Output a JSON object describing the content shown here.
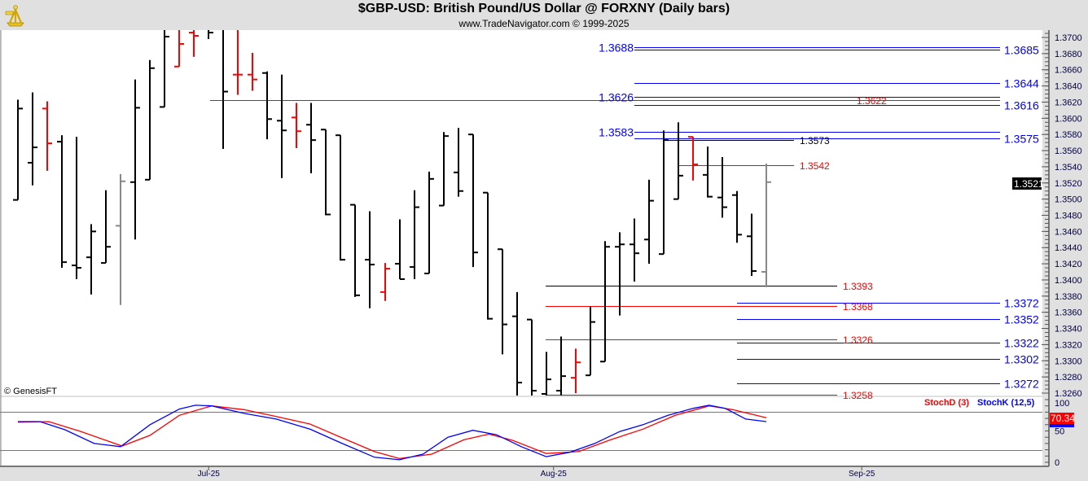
{
  "header": {
    "title": "$GBP-USD:  British Pound/US Dollar @ FORXNY  (Daily bars)",
    "subtitle": "www.TradeNavigator.com © 1999-2025",
    "logo": "sextant-logo"
  },
  "copyright": "© GenesisFT",
  "colors": {
    "up": "#000000",
    "down": "#ff0000",
    "last": "#888888",
    "blue": "#0000ff",
    "red": "#ff0000",
    "black": "#000000"
  },
  "chart_data": [
    {
      "type": "ohlc",
      "title": "$GBP-USD Daily bars",
      "ylim": [
        1.3255,
        1.371
      ],
      "y_ticks": [
        "1.3700",
        "1.3680",
        "1.3660",
        "1.3640",
        "1.3620",
        "1.3600",
        "1.3580",
        "1.3560",
        "1.3540",
        "1.3520",
        "1.3500",
        "1.3480",
        "1.3460",
        "1.3440",
        "1.3420",
        "1.3400",
        "1.3380",
        "1.3360",
        "1.3340",
        "1.3320",
        "1.3300",
        "1.3280",
        "1.3260"
      ],
      "x_ticks": [
        {
          "label": "Jul-25",
          "bar": 13
        },
        {
          "label": "Aug-25",
          "bar": 36.5
        },
        {
          "label": "Sep-25",
          "bar": 57.5
        }
      ],
      "last_price": "1.3521",
      "bars": [
        {
          "o": 1.3499,
          "h": 1.3623,
          "l": 1.3499,
          "c": 1.3612,
          "color": "up"
        },
        {
          "o": 1.3545,
          "h": 1.3632,
          "l": 1.3517,
          "c": 1.3564,
          "color": "up"
        },
        {
          "o": 1.3612,
          "h": 1.3621,
          "l": 1.3535,
          "c": 1.3569,
          "color": "down"
        },
        {
          "o": 1.3571,
          "h": 1.3579,
          "l": 1.3415,
          "c": 1.3422,
          "color": "up"
        },
        {
          "o": 1.3418,
          "h": 1.3577,
          "l": 1.3401,
          "c": 1.3415,
          "color": "up"
        },
        {
          "o": 1.3428,
          "h": 1.3469,
          "l": 1.3382,
          "c": 1.346,
          "color": "up"
        },
        {
          "o": 1.3421,
          "h": 1.3511,
          "l": 1.3421,
          "c": 1.3441,
          "color": "up"
        },
        {
          "o": 1.3467,
          "h": 1.3531,
          "l": 1.3369,
          "c": 1.3522,
          "color": "last"
        },
        {
          "o": 1.3521,
          "h": 1.3648,
          "l": 1.345,
          "c": 1.3613,
          "color": "up"
        },
        {
          "o": 1.3524,
          "h": 1.3672,
          "l": 1.3524,
          "c": 1.3662,
          "color": "up"
        },
        {
          "o": 1.3614,
          "h": 1.3736,
          "l": 1.3614,
          "c": 1.3701,
          "color": "up"
        },
        {
          "o": 1.3664,
          "h": 1.3731,
          "l": 1.3664,
          "c": 1.3692,
          "color": "down"
        },
        {
          "o": 1.3706,
          "h": 1.3728,
          "l": 1.3676,
          "c": 1.3702,
          "color": "down"
        },
        {
          "o": 1.3716,
          "h": 1.3731,
          "l": 1.3698,
          "c": 1.3706,
          "color": "up"
        },
        {
          "o": 1.3726,
          "h": 1.3734,
          "l": 1.3562,
          "c": 1.3633,
          "color": "up"
        },
        {
          "o": 1.3654,
          "h": 1.3726,
          "l": 1.3629,
          "c": 1.3654,
          "color": "down"
        },
        {
          "o": 1.3654,
          "h": 1.3681,
          "l": 1.3634,
          "c": 1.3648,
          "color": "down"
        },
        {
          "o": 1.3656,
          "h": 1.3658,
          "l": 1.3574,
          "c": 1.3599,
          "color": "up"
        },
        {
          "o": 1.3597,
          "h": 1.3654,
          "l": 1.3526,
          "c": 1.3585,
          "color": "up"
        },
        {
          "o": 1.3601,
          "h": 1.3619,
          "l": 1.3563,
          "c": 1.3584,
          "color": "down"
        },
        {
          "o": 1.3592,
          "h": 1.3619,
          "l": 1.3532,
          "c": 1.3573,
          "color": "up"
        },
        {
          "o": 1.3586,
          "h": 1.3586,
          "l": 1.348,
          "c": 1.3481,
          "color": "up"
        },
        {
          "o": 1.3579,
          "h": 1.3579,
          "l": 1.3424,
          "c": 1.3425,
          "color": "up"
        },
        {
          "o": 1.3493,
          "h": 1.3493,
          "l": 1.3379,
          "c": 1.3381,
          "color": "up"
        },
        {
          "o": 1.3425,
          "h": 1.3485,
          "l": 1.3365,
          "c": 1.3419,
          "color": "up"
        },
        {
          "o": 1.3385,
          "h": 1.3421,
          "l": 1.3374,
          "c": 1.3414,
          "color": "down"
        },
        {
          "o": 1.342,
          "h": 1.3475,
          "l": 1.3401,
          "c": 1.3401,
          "color": "up"
        },
        {
          "o": 1.3416,
          "h": 1.3511,
          "l": 1.3401,
          "c": 1.349,
          "color": "up"
        },
        {
          "o": 1.3408,
          "h": 1.3534,
          "l": 1.3408,
          "c": 1.3525,
          "color": "up"
        },
        {
          "o": 1.3492,
          "h": 1.3583,
          "l": 1.3492,
          "c": 1.3578,
          "color": "up"
        },
        {
          "o": 1.3533,
          "h": 1.3588,
          "l": 1.3503,
          "c": 1.351,
          "color": "up"
        },
        {
          "o": 1.358,
          "h": 1.358,
          "l": 1.3416,
          "c": 1.3434,
          "color": "up"
        },
        {
          "o": 1.3508,
          "h": 1.3508,
          "l": 1.3351,
          "c": 1.3352,
          "color": "up"
        },
        {
          "o": 1.3438,
          "h": 1.3438,
          "l": 1.3308,
          "c": 1.3345,
          "color": "up"
        },
        {
          "o": 1.3355,
          "h": 1.3385,
          "l": 1.3243,
          "c": 1.3273,
          "color": "up"
        },
        {
          "o": 1.3351,
          "h": 1.3351,
          "l": 1.3243,
          "c": 1.3263,
          "color": "up"
        },
        {
          "o": 1.3259,
          "h": 1.3311,
          "l": 1.3253,
          "c": 1.3277,
          "color": "up"
        },
        {
          "o": 1.3263,
          "h": 1.333,
          "l": 1.3253,
          "c": 1.3281,
          "color": "up"
        },
        {
          "o": 1.3279,
          "h": 1.3315,
          "l": 1.326,
          "c": 1.3298,
          "color": "down"
        },
        {
          "o": 1.3282,
          "h": 1.3367,
          "l": 1.3282,
          "c": 1.3348,
          "color": "up"
        },
        {
          "o": 1.3299,
          "h": 1.3448,
          "l": 1.3299,
          "c": 1.3441,
          "color": "up"
        },
        {
          "o": 1.3441,
          "h": 1.3459,
          "l": 1.3356,
          "c": 1.3444,
          "color": "up"
        },
        {
          "o": 1.3444,
          "h": 1.3476,
          "l": 1.3398,
          "c": 1.3433,
          "color": "up"
        },
        {
          "o": 1.345,
          "h": 1.3524,
          "l": 1.342,
          "c": 1.3498,
          "color": "up"
        },
        {
          "o": 1.3432,
          "h": 1.3585,
          "l": 1.3432,
          "c": 1.3573,
          "color": "up"
        },
        {
          "o": 1.35,
          "h": 1.3595,
          "l": 1.35,
          "c": 1.3529,
          "color": "up"
        },
        {
          "o": 1.3577,
          "h": 1.3577,
          "l": 1.3523,
          "c": 1.3543,
          "color": "down"
        },
        {
          "o": 1.353,
          "h": 1.3565,
          "l": 1.3502,
          "c": 1.3503,
          "color": "up"
        },
        {
          "o": 1.3502,
          "h": 1.3552,
          "l": 1.3477,
          "c": 1.349,
          "color": "up"
        },
        {
          "o": 1.3505,
          "h": 1.351,
          "l": 1.3446,
          "c": 1.3456,
          "color": "up"
        },
        {
          "o": 1.3454,
          "h": 1.3482,
          "l": 1.3405,
          "c": 1.3411,
          "color": "up"
        },
        {
          "o": 1.341,
          "h": 1.3544,
          "l": 1.3391,
          "c": 1.3521,
          "color": "last"
        }
      ],
      "levels": [
        {
          "value": 1.3688,
          "label": "1.3688",
          "color": "blue",
          "line": "blue"
        },
        {
          "value": 1.3685,
          "label": "1.3685",
          "color": "blue",
          "line": "blue"
        },
        {
          "value": 1.3644,
          "label": "1.3644",
          "color": "blue",
          "line": "blue"
        },
        {
          "value": 1.3626,
          "label": "1.3626",
          "color": "blue",
          "line": "blue"
        },
        {
          "value": 1.3622,
          "label": "1.3622",
          "color": "red",
          "line": "red"
        },
        {
          "value": 1.3616,
          "label": "1.3616",
          "color": "blue",
          "line": "blue"
        },
        {
          "value": 1.3583,
          "label": "1.3583",
          "color": "blue",
          "line": "blue"
        },
        {
          "value": 1.3575,
          "label": "1.3575",
          "color": "blue",
          "line": "blue"
        },
        {
          "value": 1.3573,
          "label": "1.3573",
          "color": "black",
          "line": "black"
        },
        {
          "value": 1.3542,
          "label": "1.3542",
          "color": "red",
          "line": "red"
        },
        {
          "value": 1.3393,
          "label": "1.3393",
          "color": "red",
          "line": "black"
        },
        {
          "value": 1.3372,
          "label": "1.3372",
          "color": "blue",
          "line": "blue"
        },
        {
          "value": 1.3368,
          "label": "1.3368",
          "color": "red",
          "line": "red"
        },
        {
          "value": 1.3352,
          "label": "1.3352",
          "color": "blue",
          "line": "blue"
        },
        {
          "value": 1.3326,
          "label": "1.3326",
          "color": "red",
          "line": "red"
        },
        {
          "value": 1.3322,
          "label": "1.3322",
          "color": "blue",
          "line": "blue"
        },
        {
          "value": 1.3302,
          "label": "1.3302",
          "color": "blue",
          "line": "blue"
        },
        {
          "value": 1.3272,
          "label": "1.3272",
          "color": "blue",
          "line": "blue"
        },
        {
          "value": 1.3258,
          "label": "1.3258",
          "color": "red",
          "line": "red"
        }
      ]
    },
    {
      "type": "line",
      "title": "Stochastic",
      "ylim": [
        0,
        100
      ],
      "y_ticks": [
        "100",
        "50",
        "0"
      ],
      "ref_lines": [
        80,
        20
      ],
      "legend": [
        {
          "name": "StochD (3)",
          "color": "#ff0000"
        },
        {
          "name": "StochK (12,5)",
          "color": "#0000ff"
        }
      ],
      "last_value": "70.34",
      "series": [
        {
          "name": "StochK (12,5)",
          "color": "#0000ff",
          "points": [
            [
              0,
              65
            ],
            [
              1.5,
              65
            ],
            [
              3.2,
              52
            ],
            [
              5.2,
              30
            ],
            [
              7,
              25
            ],
            [
              9,
              60
            ],
            [
              11,
              85
            ],
            [
              12.1,
              91
            ],
            [
              13.2,
              90
            ],
            [
              15.4,
              78
            ],
            [
              17.6,
              69
            ],
            [
              19.9,
              53
            ],
            [
              22.1,
              30
            ],
            [
              24.3,
              8
            ],
            [
              26,
              4
            ],
            [
              27.6,
              13
            ],
            [
              29.3,
              40
            ],
            [
              31,
              51
            ],
            [
              32.6,
              44
            ],
            [
              34.3,
              25
            ],
            [
              36,
              9
            ],
            [
              37.6,
              16
            ],
            [
              39.3,
              30
            ],
            [
              41,
              49
            ],
            [
              42.6,
              60
            ],
            [
              44.3,
              75
            ],
            [
              46,
              86
            ],
            [
              47.1,
              91
            ],
            [
              48.2,
              86
            ],
            [
              49.6,
              69
            ],
            [
              51,
              65
            ]
          ]
        },
        {
          "name": "StochD (3)",
          "color": "#ff0000",
          "points": [
            [
              0,
              64
            ],
            [
              2.1,
              65
            ],
            [
              4.3,
              49
            ],
            [
              7.1,
              26
            ],
            [
              9,
              43
            ],
            [
              11,
              75
            ],
            [
              13.2,
              90
            ],
            [
              15.4,
              84
            ],
            [
              17.6,
              73
            ],
            [
              19.9,
              61
            ],
            [
              22.1,
              39
            ],
            [
              24.3,
              17
            ],
            [
              26,
              6
            ],
            [
              28.2,
              13
            ],
            [
              30.4,
              36
            ],
            [
              32.1,
              45
            ],
            [
              33.7,
              35
            ],
            [
              36,
              14
            ],
            [
              38.2,
              17
            ],
            [
              40.4,
              36
            ],
            [
              42.6,
              53
            ],
            [
              44.8,
              75
            ],
            [
              47.1,
              90
            ],
            [
              48.7,
              84
            ],
            [
              51,
              71
            ]
          ]
        }
      ]
    }
  ]
}
